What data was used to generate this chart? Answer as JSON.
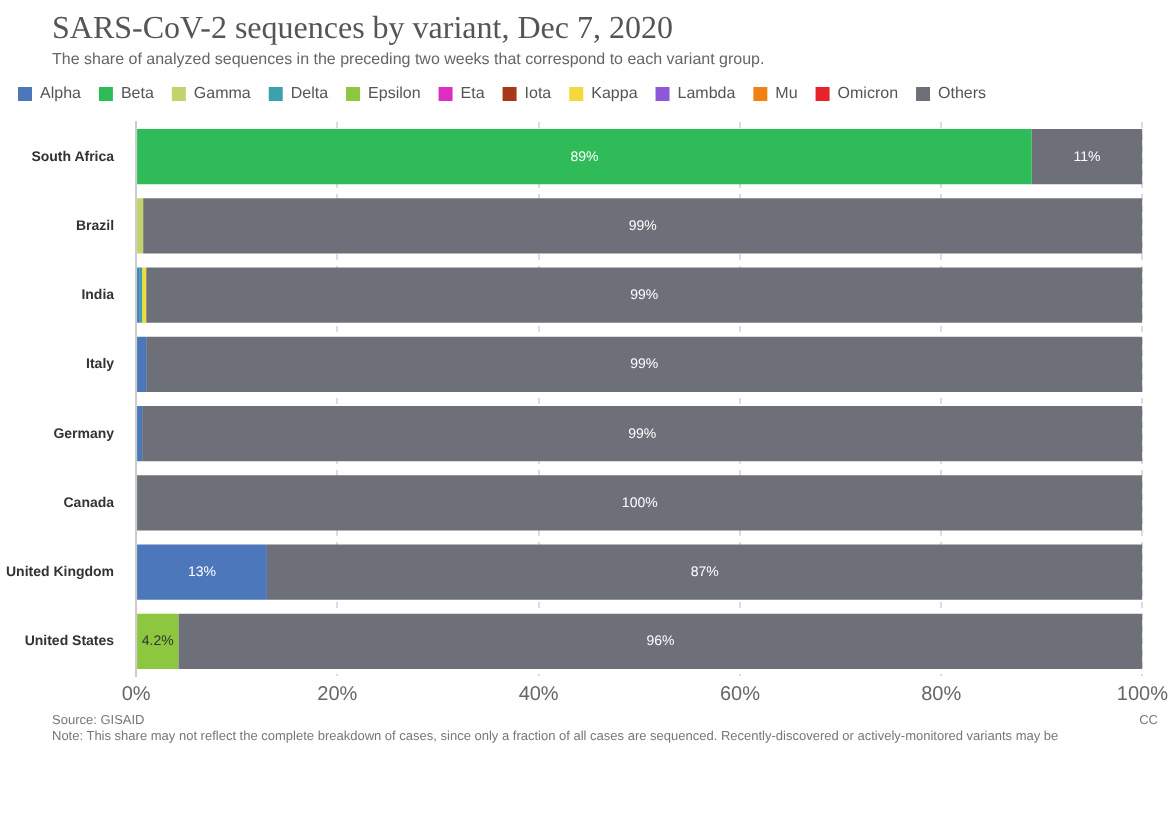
{
  "chart_data": {
    "type": "bar",
    "orientation": "horizontal",
    "stacked": true,
    "title": "SARS-CoV-2 sequences by variant, Dec 7, 2020",
    "subtitle": "The share of analyzed sequences in the preceding two weeks that correspond to each variant group.",
    "categories": [
      "South Africa",
      "Brazil",
      "India",
      "Italy",
      "Germany",
      "Canada",
      "United Kingdom",
      "United States"
    ],
    "series": [
      {
        "name": "Alpha",
        "color": "#4c77bb",
        "values": [
          null,
          null,
          0.3,
          1,
          0.6,
          null,
          13,
          null
        ],
        "value_labels": [
          null,
          null,
          null,
          null,
          null,
          null,
          "13%",
          null
        ]
      },
      {
        "name": "Beta",
        "color": "#2fbb58",
        "values": [
          89,
          null,
          null,
          null,
          null,
          null,
          null,
          null
        ],
        "value_labels": [
          "89%",
          null,
          null,
          null,
          null,
          null,
          null,
          null
        ]
      },
      {
        "name": "Gamma",
        "color": "#c3d36b",
        "values": [
          null,
          0.7,
          null,
          null,
          null,
          null,
          null,
          null
        ]
      },
      {
        "name": "Delta",
        "color": "#3aa2ae",
        "values": [
          null,
          null,
          0.3,
          null,
          null,
          null,
          null,
          null
        ]
      },
      {
        "name": "Epsilon",
        "color": "#8dc63f",
        "values": [
          null,
          null,
          null,
          null,
          null,
          null,
          null,
          4.2
        ],
        "value_labels": [
          null,
          null,
          null,
          null,
          null,
          null,
          null,
          "4.2%"
        ]
      },
      {
        "name": "Eta",
        "color": "#dd2ec1",
        "values": [
          null,
          null,
          null,
          null,
          null,
          null,
          null,
          null
        ]
      },
      {
        "name": "Iota",
        "color": "#a7391a",
        "values": [
          null,
          null,
          null,
          null,
          null,
          null,
          null,
          null
        ]
      },
      {
        "name": "Kappa",
        "color": "#f5d93a",
        "values": [
          null,
          null,
          0.4,
          null,
          null,
          null,
          null,
          null
        ]
      },
      {
        "name": "Lambda",
        "color": "#8e59d8",
        "values": [
          null,
          null,
          null,
          null,
          null,
          null,
          null,
          null
        ]
      },
      {
        "name": "Mu",
        "color": "#f08213",
        "values": [
          null,
          null,
          null,
          null,
          null,
          null,
          null,
          null
        ]
      },
      {
        "name": "Omicron",
        "color": "#e4232a",
        "values": [
          null,
          null,
          null,
          null,
          null,
          null,
          null,
          null
        ]
      },
      {
        "name": "Others",
        "color": "#6d7078",
        "values": [
          11,
          99.3,
          99,
          99,
          99.4,
          100,
          87,
          95.8
        ],
        "value_labels": [
          "11%",
          "99%",
          "99%",
          "99%",
          "99%",
          "100%",
          "87%",
          "96%"
        ]
      }
    ],
    "xlim": [
      0,
      100
    ],
    "xticks": [
      {
        "value": 0,
        "label": "0%"
      },
      {
        "value": 20,
        "label": "20%"
      },
      {
        "value": 40,
        "label": "40%"
      },
      {
        "value": 60,
        "label": "60%"
      },
      {
        "value": 80,
        "label": "80%"
      },
      {
        "value": 100,
        "label": "100%"
      }
    ],
    "grid": "x",
    "legend": "top left",
    "annotations": [
      "Source: GISAID",
      "Note: This share may not reflect the complete breakdown of cases, since only a fraction of all cases are sequenced. Recently-discovered or actively-monitored variants may be",
      "CC"
    ]
  }
}
